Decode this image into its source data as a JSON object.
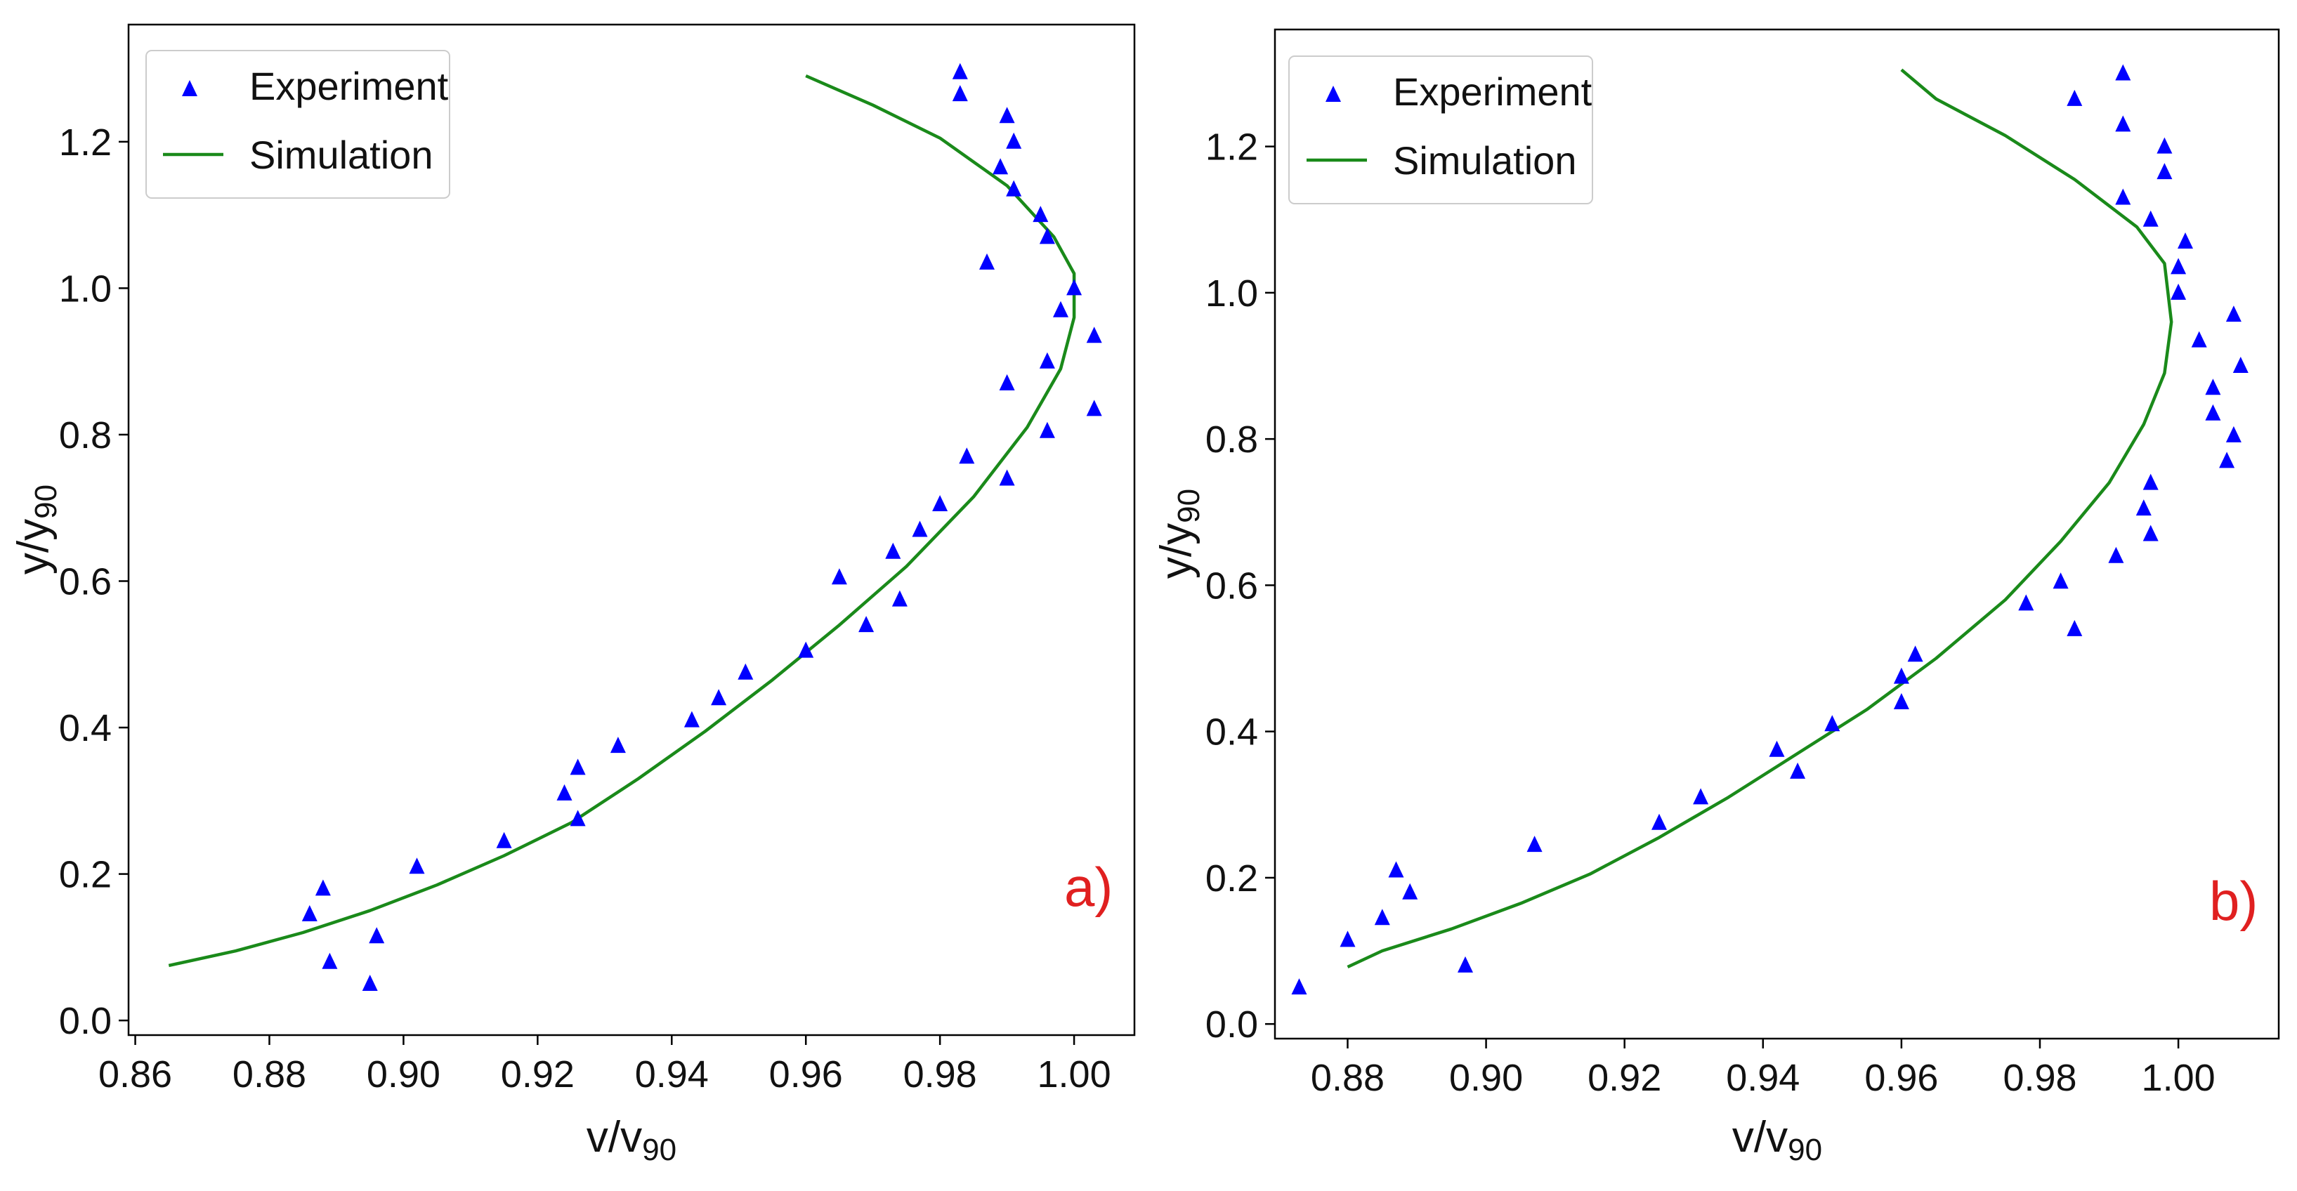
{
  "colors": {
    "experiment": "#0000ff",
    "simulation": "#1a8a1a",
    "panel_label": "#e02020",
    "axis": "#000000"
  },
  "chart_data": [
    {
      "type": "scatter",
      "panel": "a)",
      "xlabel_main": "v/v",
      "xlabel_sub": "90",
      "ylabel_main": "y/y",
      "ylabel_sub": "90",
      "xlim": [
        0.859,
        1.009
      ],
      "ylim": [
        -0.02,
        1.36
      ],
      "xticks": [
        0.86,
        0.88,
        0.9,
        0.92,
        0.94,
        0.96,
        0.98,
        1.0
      ],
      "xtick_labels": [
        "0.86",
        "0.88",
        "0.90",
        "0.92",
        "0.94",
        "0.96",
        "0.98",
        "1.00"
      ],
      "yticks": [
        0.0,
        0.2,
        0.4,
        0.6,
        0.8,
        1.0,
        1.2
      ],
      "ytick_labels": [
        "0.0",
        "0.2",
        "0.4",
        "0.6",
        "0.8",
        "1.0",
        "1.2"
      ],
      "legend": {
        "position": "top-left",
        "experiment_label": "Experiment",
        "simulation_label": "Simulation"
      },
      "series": [
        {
          "name": "Experiment",
          "marker": "triangle",
          "points": [
            [
              0.886,
              0.145
            ],
            [
              0.888,
              0.18
            ],
            [
              0.889,
              0.08
            ],
            [
              0.895,
              0.05
            ],
            [
              0.896,
              0.115
            ],
            [
              0.902,
              0.21
            ],
            [
              0.915,
              0.245
            ],
            [
              0.924,
              0.31
            ],
            [
              0.926,
              0.345
            ],
            [
              0.926,
              0.275
            ],
            [
              0.932,
              0.375
            ],
            [
              0.943,
              0.41
            ],
            [
              0.947,
              0.44
            ],
            [
              0.951,
              0.475
            ],
            [
              0.96,
              0.505
            ],
            [
              0.965,
              0.605
            ],
            [
              0.969,
              0.54
            ],
            [
              0.973,
              0.64
            ],
            [
              0.974,
              0.575
            ],
            [
              0.977,
              0.67
            ],
            [
              0.98,
              0.705
            ],
            [
              0.984,
              0.77
            ],
            [
              0.983,
              1.295
            ],
            [
              0.983,
              1.265
            ],
            [
              0.987,
              1.035
            ],
            [
              0.989,
              1.165
            ],
            [
              0.99,
              1.235
            ],
            [
              0.99,
              0.74
            ],
            [
              0.99,
              0.87
            ],
            [
              0.991,
              1.2
            ],
            [
              0.991,
              1.135
            ],
            [
              0.995,
              1.1
            ],
            [
              0.996,
              1.07
            ],
            [
              0.996,
              0.9
            ],
            [
              0.996,
              0.805
            ],
            [
              0.998,
              0.97
            ],
            [
              1.0,
              1.0
            ],
            [
              1.003,
              0.935
            ],
            [
              1.003,
              0.835
            ]
          ]
        },
        {
          "name": "Simulation",
          "marker": "line",
          "points": [
            [
              0.865,
              0.075
            ],
            [
              0.875,
              0.095
            ],
            [
              0.885,
              0.12
            ],
            [
              0.895,
              0.15
            ],
            [
              0.905,
              0.185
            ],
            [
              0.915,
              0.225
            ],
            [
              0.925,
              0.27
            ],
            [
              0.935,
              0.33
            ],
            [
              0.945,
              0.395
            ],
            [
              0.955,
              0.465
            ],
            [
              0.965,
              0.54
            ],
            [
              0.975,
              0.62
            ],
            [
              0.985,
              0.715
            ],
            [
              0.993,
              0.81
            ],
            [
              0.998,
              0.89
            ],
            [
              1.0,
              0.96
            ],
            [
              1.0,
              1.02
            ],
            [
              0.997,
              1.07
            ],
            [
              0.99,
              1.14
            ],
            [
              0.98,
              1.205
            ],
            [
              0.97,
              1.25
            ],
            [
              0.96,
              1.29
            ]
          ]
        }
      ]
    },
    {
      "type": "scatter",
      "panel": "b)",
      "xlabel_main": "v/v",
      "xlabel_sub": "90",
      "ylabel_main": "y/y",
      "ylabel_sub": "90",
      "xlim": [
        0.8695,
        1.0145
      ],
      "ylim": [
        -0.02,
        1.36
      ],
      "xticks": [
        0.88,
        0.9,
        0.92,
        0.94,
        0.96,
        0.98,
        1.0
      ],
      "xtick_labels": [
        "0.88",
        "0.90",
        "0.92",
        "0.94",
        "0.96",
        "0.98",
        "1.00"
      ],
      "yticks": [
        0.0,
        0.2,
        0.4,
        0.6,
        0.8,
        1.0,
        1.2
      ],
      "ytick_labels": [
        "0.0",
        "0.2",
        "0.4",
        "0.6",
        "0.8",
        "1.0",
        "1.2"
      ],
      "legend": {
        "position": "top-left",
        "experiment_label": "Experiment",
        "simulation_label": "Simulation"
      },
      "series": [
        {
          "name": "Experiment",
          "marker": "triangle",
          "points": [
            [
              0.873,
              0.05
            ],
            [
              0.88,
              0.115
            ],
            [
              0.885,
              0.145
            ],
            [
              0.887,
              0.21
            ],
            [
              0.889,
              0.18
            ],
            [
              0.897,
              0.08
            ],
            [
              0.907,
              0.245
            ],
            [
              0.925,
              0.275
            ],
            [
              0.931,
              0.31
            ],
            [
              0.942,
              0.375
            ],
            [
              0.945,
              0.345
            ],
            [
              0.95,
              0.41
            ],
            [
              0.96,
              0.475
            ],
            [
              0.96,
              0.44
            ],
            [
              0.962,
              0.505
            ],
            [
              0.978,
              0.575
            ],
            [
              0.983,
              0.605
            ],
            [
              0.985,
              0.54
            ],
            [
              0.985,
              1.265
            ],
            [
              0.991,
              0.64
            ],
            [
              0.992,
              1.3
            ],
            [
              0.992,
              1.23
            ],
            [
              0.992,
              1.13
            ],
            [
              0.995,
              0.705
            ],
            [
              0.996,
              0.67
            ],
            [
              0.996,
              0.74
            ],
            [
              0.996,
              1.1
            ],
            [
              0.998,
              1.2
            ],
            [
              0.998,
              1.165
            ],
            [
              1.0,
              1.035
            ],
            [
              1.0,
              1.0
            ],
            [
              1.001,
              1.07
            ],
            [
              1.003,
              0.935
            ],
            [
              1.005,
              0.87
            ],
            [
              1.005,
              0.835
            ],
            [
              1.007,
              0.77
            ],
            [
              1.008,
              0.805
            ],
            [
              1.008,
              0.97
            ],
            [
              1.009,
              0.9
            ]
          ]
        },
        {
          "name": "Simulation",
          "marker": "line",
          "points": [
            [
              0.88,
              0.078
            ],
            [
              0.885,
              0.1
            ],
            [
              0.895,
              0.13
            ],
            [
              0.905,
              0.165
            ],
            [
              0.915,
              0.205
            ],
            [
              0.925,
              0.255
            ],
            [
              0.935,
              0.31
            ],
            [
              0.945,
              0.37
            ],
            [
              0.955,
              0.43
            ],
            [
              0.965,
              0.5
            ],
            [
              0.975,
              0.58
            ],
            [
              0.983,
              0.66
            ],
            [
              0.99,
              0.74
            ],
            [
              0.995,
              0.82
            ],
            [
              0.998,
              0.89
            ],
            [
              0.999,
              0.96
            ],
            [
              0.998,
              1.04
            ],
            [
              0.994,
              1.09
            ],
            [
              0.985,
              1.155
            ],
            [
              0.975,
              1.215
            ],
            [
              0.965,
              1.265
            ],
            [
              0.96,
              1.305
            ]
          ]
        }
      ]
    }
  ]
}
